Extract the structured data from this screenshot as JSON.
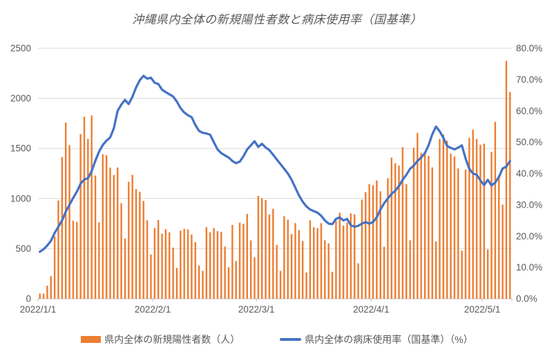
{
  "title": "沖縄県内全体の新規陽性者数と病床使用率（国基準）",
  "colors": {
    "bar": "#ED7D31",
    "line": "#4472C4",
    "grid": "#D9D9D9",
    "axis_line": "#BFBFBF",
    "axis_text": "#595959",
    "title_text": "#595959",
    "background": "#FFFFFF"
  },
  "legend": {
    "bar_label": "県内全体の新規陽性者数（人）",
    "line_label": "県内全体の病床使用率（国基準）（%）"
  },
  "chart_data": {
    "type": "combo-bar-line",
    "title": "沖縄県内全体の新規陽性者数と病床使用率（国基準）",
    "x_start": "2022/1/1",
    "x_end": "2022/5/8",
    "month_day_counts": [
      {
        "month": "2022/1",
        "days": 31
      },
      {
        "month": "2022/2",
        "days": 28
      },
      {
        "month": "2022/3",
        "days": 31
      },
      {
        "month": "2022/4",
        "days": 30
      },
      {
        "month": "2022/5",
        "days": 8
      }
    ],
    "x_tick_labels": [
      "2022/1/1",
      "2022/2/1",
      "2022/3/1",
      "2022/4/1",
      "2022/5/1"
    ],
    "left_axis": {
      "min": 0,
      "max": 2500,
      "step": 500,
      "ticks": [
        "0",
        "500",
        "1000",
        "1500",
        "2000",
        "2500"
      ]
    },
    "right_axis": {
      "min": 0,
      "max": 80,
      "step": 10,
      "ticks": [
        "0.0%",
        "10.0%",
        "20.0%",
        "30.0%",
        "40.0%",
        "50.0%",
        "60.0%",
        "70.0%",
        "80.0%"
      ]
    },
    "grid": true,
    "legend_position": "bottom",
    "series": [
      {
        "name": "県内全体の新規陽性者数（人）",
        "type": "bar",
        "axis": "left",
        "color": "#ED7D31",
        "values": [
          52,
          51,
          130,
          225,
          623,
          981,
          1414,
          1759,
          1533,
          779,
          767,
          1644,
          1817,
          1596,
          1829,
          1230,
          761,
          1443,
          1433,
          1309,
          1235,
          1310,
          955,
          600,
          1168,
          1237,
          1094,
          1067,
          976,
          783,
          443,
          706,
          786,
          649,
          695,
          663,
          510,
          308,
          680,
          698,
          693,
          641,
          565,
          331,
          278,
          714,
          663,
          705,
          675,
          668,
          521,
          315,
          737,
          376,
          760,
          748,
          847,
          583,
          415,
          1026,
          1003,
          985,
          840,
          898,
          537,
          278,
          824,
          790,
          645,
          755,
          686,
          576,
          262,
          783,
          714,
          705,
          755,
          583,
          553,
          269,
          778,
          860,
          730,
          760,
          852,
          842,
          354,
          989,
          1065,
          1145,
          1134,
          1180,
          1072,
          519,
          1203,
          1409,
          1352,
          1329,
          1513,
          1145,
          583,
          1508,
          1655,
          1456,
          1443,
          1426,
          1311,
          572,
          1594,
          1640,
          1577,
          1449,
          1421,
          1301,
          480,
          1289,
          1606,
          1687,
          1595,
          1537,
          1548,
          492,
          1467,
          1766,
          1226,
          939,
          2374,
          2064
        ]
      },
      {
        "name": "県内全体の病床使用率（国基準）（%）",
        "type": "line",
        "axis": "right",
        "color": "#4472C4",
        "values": [
          15.0,
          15.8,
          17.0,
          18.5,
          21.0,
          23.0,
          25.0,
          27.8,
          30.0,
          32.2,
          34.2,
          36.7,
          38.1,
          38.5,
          40.8,
          44.1,
          47.0,
          49.1,
          50.5,
          51.5,
          54.5,
          60.0,
          62.0,
          63.5,
          62.2,
          64.5,
          67.5,
          69.8,
          71.2,
          70.3,
          70.6,
          69.0,
          68.6,
          66.8,
          66.0,
          65.3,
          64.6,
          63.0,
          60.9,
          59.5,
          58.6,
          58.0,
          55.5,
          53.6,
          53.0,
          52.8,
          52.4,
          50.0,
          47.7,
          46.5,
          45.8,
          45.1,
          44.0,
          43.3,
          43.8,
          45.5,
          47.7,
          49.0,
          50.3,
          48.5,
          49.5,
          48.3,
          47.5,
          46.0,
          44.5,
          43.0,
          41.5,
          40.0,
          38.0,
          35.5,
          33.0,
          31.0,
          29.5,
          28.5,
          28.0,
          27.5,
          26.5,
          25.0,
          24.0,
          23.8,
          25.5,
          26.0,
          25.0,
          25.5,
          23.5,
          23.0,
          23.3,
          24.0,
          24.5,
          24.0,
          24.5,
          26.0,
          28.5,
          30.5,
          32.0,
          33.5,
          34.5,
          36.0,
          38.0,
          39.6,
          41.5,
          42.5,
          44.0,
          45.1,
          46.5,
          49.0,
          52.5,
          55.0,
          53.5,
          51.4,
          48.8,
          48.2,
          47.7,
          48.3,
          49.0,
          44.8,
          41.5,
          40.0,
          39.6,
          37.8,
          36.3,
          38.0,
          36.2,
          37.1,
          38.9,
          41.6,
          42.2,
          44.0
        ]
      }
    ]
  }
}
